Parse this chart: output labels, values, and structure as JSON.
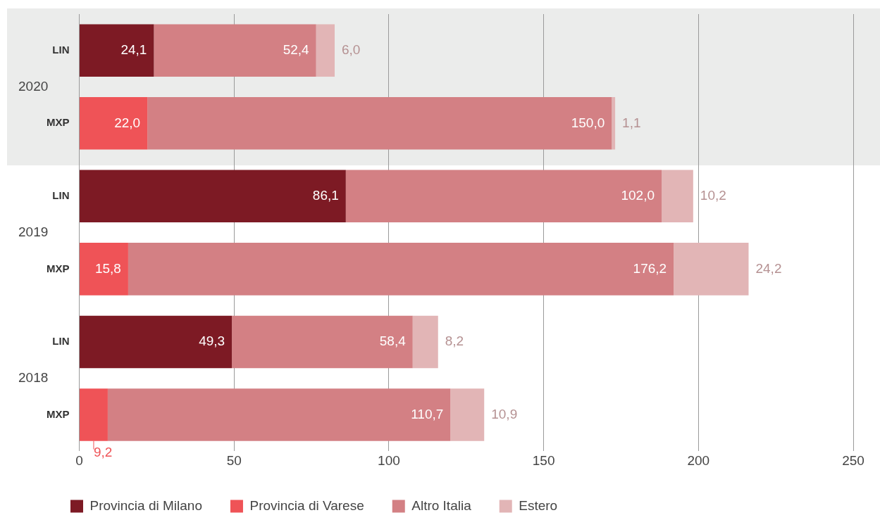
{
  "chart_data": {
    "type": "bar",
    "orientation": "horizontal",
    "stacked": true,
    "categories": [
      "LIN",
      "MXP",
      "LIN",
      "MXP",
      "LIN",
      "MXP"
    ],
    "series": [
      {
        "name": "Provincia di Milano",
        "color": "#7d1a24",
        "values": [
          24.1,
          null,
          86.1,
          null,
          49.3,
          null
        ],
        "value_labels": [
          "24,1",
          null,
          "86,1",
          null,
          "49,3",
          null
        ]
      },
      {
        "name": "Provincia di Varese",
        "color": "#ef5357",
        "values": [
          null,
          22.0,
          null,
          15.8,
          null,
          9.2
        ],
        "value_labels": [
          null,
          "22,0",
          null,
          "15,8",
          null,
          "9,2"
        ]
      },
      {
        "name": "Altro Italia",
        "color": "#d38084",
        "values": [
          52.4,
          150.0,
          102.0,
          176.2,
          58.4,
          110.7
        ],
        "value_labels": [
          "52,4",
          "150,0",
          "102,0",
          "176,2",
          "58,4",
          "110,7"
        ]
      },
      {
        "name": "Estero",
        "color": "#e2b5b6",
        "values": [
          6.0,
          1.1,
          10.2,
          24.2,
          8.2,
          10.9
        ],
        "value_labels": [
          "6,0",
          "1,1",
          "10,2",
          "24,2",
          "8,2",
          "10,9"
        ]
      }
    ],
    "xlim": [
      0,
      250
    ],
    "xticks": [
      0,
      50,
      100,
      150,
      200,
      250
    ],
    "grid": "x",
    "legend": "bottom",
    "annotations": [
      "2020",
      "2019",
      "2018"
    ]
  }
}
